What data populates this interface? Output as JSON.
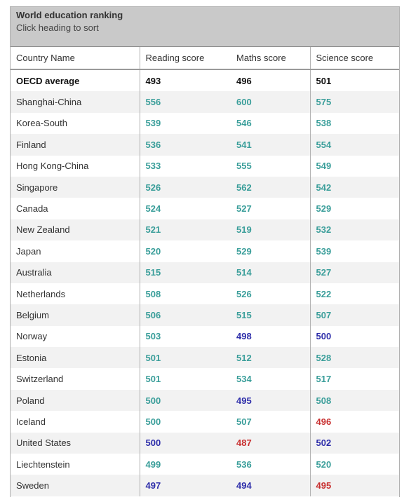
{
  "header": {
    "title": "World education ranking",
    "subtitle": "Click heading to sort"
  },
  "columns": [
    "Country Name",
    "Reading score",
    "Maths score",
    "Science score"
  ],
  "colors": {
    "teal": "#3a9e9a",
    "blue": "#2e2eaa",
    "red": "#c83030",
    "black": "#111111"
  },
  "rows": [
    {
      "country": "OECD average",
      "reading": "493",
      "maths": "496",
      "science": "501",
      "reading_color": "black",
      "maths_color": "black",
      "science_color": "black",
      "is_average": true
    },
    {
      "country": "Shanghai-China",
      "reading": "556",
      "maths": "600",
      "science": "575",
      "reading_color": "teal",
      "maths_color": "teal",
      "science_color": "teal"
    },
    {
      "country": "Korea-South",
      "reading": "539",
      "maths": "546",
      "science": "538",
      "reading_color": "teal",
      "maths_color": "teal",
      "science_color": "teal"
    },
    {
      "country": "Finland",
      "reading": "536",
      "maths": "541",
      "science": "554",
      "reading_color": "teal",
      "maths_color": "teal",
      "science_color": "teal"
    },
    {
      "country": "Hong Kong-China",
      "reading": "533",
      "maths": "555",
      "science": "549",
      "reading_color": "teal",
      "maths_color": "teal",
      "science_color": "teal"
    },
    {
      "country": "Singapore",
      "reading": "526",
      "maths": "562",
      "science": "542",
      "reading_color": "teal",
      "maths_color": "teal",
      "science_color": "teal"
    },
    {
      "country": "Canada",
      "reading": "524",
      "maths": "527",
      "science": "529",
      "reading_color": "teal",
      "maths_color": "teal",
      "science_color": "teal"
    },
    {
      "country": "New Zealand",
      "reading": "521",
      "maths": "519",
      "science": "532",
      "reading_color": "teal",
      "maths_color": "teal",
      "science_color": "teal"
    },
    {
      "country": "Japan",
      "reading": "520",
      "maths": "529",
      "science": "539",
      "reading_color": "teal",
      "maths_color": "teal",
      "science_color": "teal"
    },
    {
      "country": "Australia",
      "reading": "515",
      "maths": "514",
      "science": "527",
      "reading_color": "teal",
      "maths_color": "teal",
      "science_color": "teal"
    },
    {
      "country": "Netherlands",
      "reading": "508",
      "maths": "526",
      "science": "522",
      "reading_color": "teal",
      "maths_color": "teal",
      "science_color": "teal"
    },
    {
      "country": "Belgium",
      "reading": "506",
      "maths": "515",
      "science": "507",
      "reading_color": "teal",
      "maths_color": "teal",
      "science_color": "teal"
    },
    {
      "country": "Norway",
      "reading": "503",
      "maths": "498",
      "science": "500",
      "reading_color": "teal",
      "maths_color": "blue",
      "science_color": "blue"
    },
    {
      "country": "Estonia",
      "reading": "501",
      "maths": "512",
      "science": "528",
      "reading_color": "teal",
      "maths_color": "teal",
      "science_color": "teal"
    },
    {
      "country": "Switzerland",
      "reading": "501",
      "maths": "534",
      "science": "517",
      "reading_color": "teal",
      "maths_color": "teal",
      "science_color": "teal"
    },
    {
      "country": "Poland",
      "reading": "500",
      "maths": "495",
      "science": "508",
      "reading_color": "teal",
      "maths_color": "blue",
      "science_color": "teal"
    },
    {
      "country": "Iceland",
      "reading": "500",
      "maths": "507",
      "science": "496",
      "reading_color": "teal",
      "maths_color": "teal",
      "science_color": "red"
    },
    {
      "country": "United States",
      "reading": "500",
      "maths": "487",
      "science": "502",
      "reading_color": "blue",
      "maths_color": "red",
      "science_color": "blue"
    },
    {
      "country": "Liechtenstein",
      "reading": "499",
      "maths": "536",
      "science": "520",
      "reading_color": "teal",
      "maths_color": "teal",
      "science_color": "teal"
    },
    {
      "country": "Sweden",
      "reading": "497",
      "maths": "494",
      "science": "495",
      "reading_color": "blue",
      "maths_color": "blue",
      "science_color": "red"
    }
  ]
}
